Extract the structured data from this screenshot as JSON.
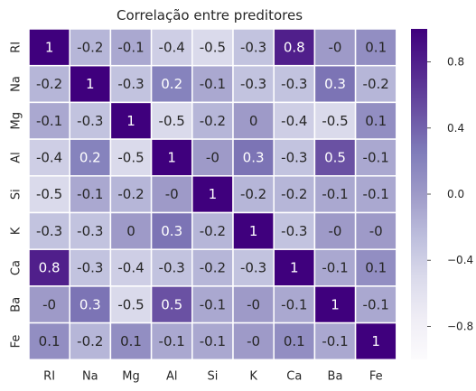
{
  "chart_data": {
    "type": "heatmap",
    "title": "Correlação entre preditores",
    "categories": [
      "RI",
      "Na",
      "Mg",
      "Al",
      "Si",
      "K",
      "Ca",
      "Ba",
      "Fe"
    ],
    "values": [
      [
        1,
        -0.2,
        -0.1,
        -0.4,
        -0.5,
        -0.3,
        0.8,
        0,
        0.1
      ],
      [
        -0.2,
        1,
        -0.3,
        0.2,
        -0.1,
        -0.3,
        -0.3,
        0.3,
        -0.2
      ],
      [
        -0.1,
        -0.3,
        1,
        -0.5,
        -0.2,
        0,
        -0.4,
        -0.5,
        0.1
      ],
      [
        -0.4,
        0.2,
        -0.5,
        1,
        0,
        0.3,
        -0.3,
        0.5,
        -0.1
      ],
      [
        -0.5,
        -0.1,
        -0.2,
        0,
        1,
        -0.2,
        -0.2,
        -0.1,
        -0.1
      ],
      [
        -0.3,
        -0.3,
        0,
        0.3,
        -0.2,
        1,
        -0.3,
        0,
        0
      ],
      [
        0.8,
        -0.3,
        -0.4,
        -0.3,
        -0.2,
        -0.3,
        1,
        -0.1,
        0.1
      ],
      [
        0,
        0.3,
        -0.5,
        0.5,
        -0.1,
        0,
        -0.1,
        1,
        -0.1
      ],
      [
        0.1,
        -0.2,
        0.1,
        -0.1,
        -0.1,
        0,
        0.1,
        -0.1,
        1
      ]
    ],
    "cell_labels": [
      [
        "1",
        "-0.2",
        "-0.1",
        "-0.4",
        "-0.5",
        "-0.3",
        "0.8",
        "-0",
        "0.1"
      ],
      [
        "-0.2",
        "1",
        "-0.3",
        "0.2",
        "-0.1",
        "-0.3",
        "-0.3",
        "0.3",
        "-0.2"
      ],
      [
        "-0.1",
        "-0.3",
        "1",
        "-0.5",
        "-0.2",
        "0",
        "-0.4",
        "-0.5",
        "0.1"
      ],
      [
        "-0.4",
        "0.2",
        "-0.5",
        "1",
        "-0",
        "0.3",
        "-0.3",
        "0.5",
        "-0.1"
      ],
      [
        "-0.5",
        "-0.1",
        "-0.2",
        "-0",
        "1",
        "-0.2",
        "-0.2",
        "-0.1",
        "-0.1"
      ],
      [
        "-0.3",
        "-0.3",
        "0",
        "0.3",
        "-0.2",
        "1",
        "-0.3",
        "-0",
        "-0"
      ],
      [
        "0.8",
        "-0.3",
        "-0.4",
        "-0.3",
        "-0.2",
        "-0.3",
        "1",
        "-0.1",
        "0.1"
      ],
      [
        "-0",
        "0.3",
        "-0.5",
        "0.5",
        "-0.1",
        "-0",
        "-0.1",
        "1",
        "-0.1"
      ],
      [
        "0.1",
        "-0.2",
        "0.1",
        "-0.1",
        "-0.1",
        "-0",
        "0.1",
        "-0.1",
        "1"
      ]
    ],
    "colorbar": {
      "colormap": "Purples",
      "range": [
        -1,
        1
      ],
      "ticks": [
        0.8,
        0.4,
        0.0,
        -0.4,
        -0.8
      ],
      "tick_labels": [
        "0.8",
        "0.4",
        "0.0",
        "−0.4",
        "−0.8"
      ]
    }
  }
}
